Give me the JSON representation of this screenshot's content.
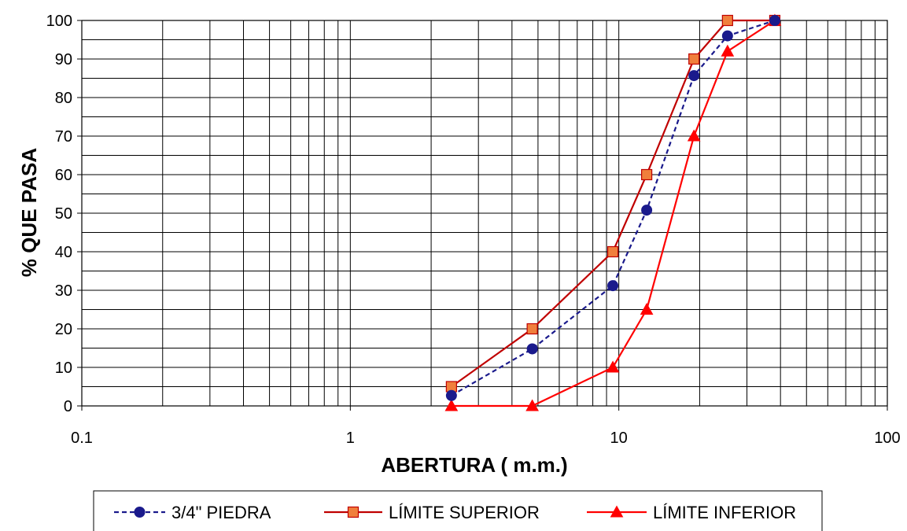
{
  "chart_data": {
    "type": "line",
    "xlabel": "ABERTURA ( m.m.)",
    "ylabel": "% QUE PASA",
    "x_scale": "log",
    "xlim": [
      0.1,
      100
    ],
    "ylim": [
      0,
      100
    ],
    "x_ticks": [
      0.1,
      1,
      10,
      100
    ],
    "x_tick_labels": [
      "0.1",
      "1",
      "10",
      "100"
    ],
    "y_ticks": [
      0,
      10,
      20,
      30,
      40,
      50,
      60,
      70,
      80,
      90,
      100
    ],
    "y_tick_labels": [
      "0",
      "10",
      "20",
      "30",
      "40",
      "50",
      "60",
      "70",
      "80",
      "90",
      "100"
    ],
    "grid": true,
    "legend_position": "bottom",
    "series": [
      {
        "name": "3/4\"  PIEDRA",
        "color": "#1a1a8c",
        "line_style": "dashed",
        "marker": "circle",
        "x": [
          2.38,
          4.76,
          9.5,
          12.7,
          19.05,
          25.4,
          38.1
        ],
        "y": [
          2.7,
          14.8,
          31.2,
          50.8,
          85.7,
          96.0,
          100
        ]
      },
      {
        "name": "LÍMITE SUPERIOR",
        "color": "#c00000",
        "marker_fill": "#f07f3c",
        "line_style": "solid",
        "marker": "square",
        "x": [
          2.38,
          4.76,
          9.5,
          12.7,
          19.05,
          25.4,
          38.1
        ],
        "y": [
          5,
          20,
          40,
          60,
          90,
          100,
          100
        ]
      },
      {
        "name": "LÍMITE INFERIOR",
        "color": "#ff0000",
        "line_style": "solid",
        "marker": "triangle",
        "x": [
          2.38,
          4.76,
          9.5,
          12.7,
          19.05,
          25.4,
          38.1
        ],
        "y": [
          0,
          0,
          10,
          25,
          70,
          92,
          100
        ]
      }
    ]
  }
}
